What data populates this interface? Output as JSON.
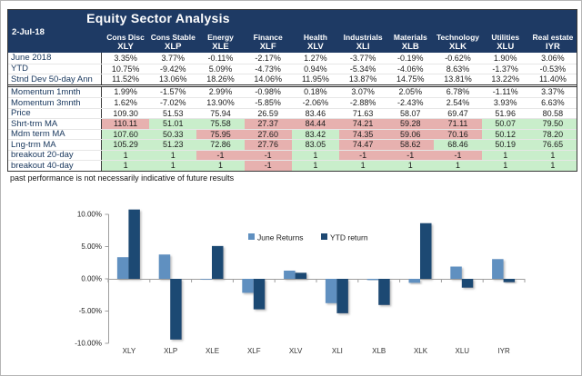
{
  "header": {
    "title": "Equity Sector Analysis",
    "date": "2-Jul-18"
  },
  "table": {
    "columns": [
      {
        "sector": "Cons Disc",
        "ticker": "XLY"
      },
      {
        "sector": "Cons Stable",
        "ticker": "XLP"
      },
      {
        "sector": "Energy",
        "ticker": "XLE"
      },
      {
        "sector": "Finance",
        "ticker": "XLF"
      },
      {
        "sector": "Health",
        "ticker": "XLV"
      },
      {
        "sector": "Industrials",
        "ticker": "XLI"
      },
      {
        "sector": "Materials",
        "ticker": "XLB"
      },
      {
        "sector": "Technology",
        "ticker": "XLK"
      },
      {
        "sector": "Utilities",
        "ticker": "XLU"
      },
      {
        "sector": "Real estate",
        "ticker": "IYR"
      }
    ],
    "section_break_after": 3,
    "rows": [
      {
        "label": "June 2018",
        "values": [
          "3.35%",
          "3.77%",
          "-0.11%",
          "-2.17%",
          "1.27%",
          "-3.77%",
          "-0.19%",
          "-0.62%",
          "1.90%",
          "3.06%"
        ],
        "colors": null
      },
      {
        "label": "YTD",
        "values": [
          "10.75%",
          "-9.42%",
          "5.09%",
          "-4.73%",
          "0.94%",
          "-5.34%",
          "-4.06%",
          "8.63%",
          "-1.37%",
          "-0.53%"
        ],
        "colors": null
      },
      {
        "label": "Stnd Dev 50-day Ann",
        "values": [
          "11.52%",
          "13.06%",
          "18.26%",
          "14.06%",
          "11.95%",
          "13.87%",
          "14.75%",
          "13.81%",
          "13.22%",
          "11.40%"
        ],
        "colors": null
      },
      {
        "label": "Momentum 1mnth",
        "values": [
          "1.99%",
          "-1.57%",
          "2.99%",
          "-0.98%",
          "0.18%",
          "3.07%",
          "2.05%",
          "6.78%",
          "-1.11%",
          "3.37%"
        ],
        "colors": null
      },
      {
        "label": "Momentum 3mnth",
        "values": [
          "1.62%",
          "-7.02%",
          "13.90%",
          "-5.85%",
          "-2.06%",
          "-2.88%",
          "-2.43%",
          "2.54%",
          "3.93%",
          "6.63%"
        ],
        "colors": null
      },
      {
        "label": "Price",
        "values": [
          "109.30",
          "51.53",
          "75.94",
          "26.59",
          "83.46",
          "71.63",
          "58.07",
          "69.47",
          "51.96",
          "80.58"
        ],
        "colors": null
      },
      {
        "label": "Shrt-trm MA",
        "values": [
          "110.11",
          "51.01",
          "75.58",
          "27.37",
          "84.44",
          "74.21",
          "59.28",
          "71.11",
          "50.07",
          "79.50"
        ],
        "colors": [
          "r",
          "g",
          "g",
          "r",
          "r",
          "r",
          "r",
          "r",
          "g",
          "g"
        ]
      },
      {
        "label": "Mdm term MA",
        "values": [
          "107.60",
          "50.33",
          "75.95",
          "27.60",
          "83.42",
          "74.35",
          "59.06",
          "70.16",
          "50.12",
          "78.20"
        ],
        "colors": [
          "g",
          "g",
          "r",
          "r",
          "g",
          "r",
          "r",
          "r",
          "g",
          "g"
        ]
      },
      {
        "label": "Lng-trm MA",
        "values": [
          "105.29",
          "51.23",
          "72.86",
          "27.76",
          "83.05",
          "74.47",
          "58.62",
          "68.46",
          "50.19",
          "76.65"
        ],
        "colors": [
          "g",
          "g",
          "g",
          "r",
          "g",
          "r",
          "r",
          "g",
          "g",
          "g"
        ]
      },
      {
        "label": "breakout 20-day",
        "values": [
          "1",
          "1",
          "-1",
          "-1",
          "1",
          "-1",
          "-1",
          "-1",
          "1",
          "1"
        ],
        "colors": [
          "g",
          "g",
          "r",
          "r",
          "g",
          "r",
          "r",
          "r",
          "g",
          "g"
        ]
      },
      {
        "label": "breakout 40-day",
        "values": [
          "1",
          "1",
          "1",
          "-1",
          "1",
          "1",
          "1",
          "1",
          "1",
          "1"
        ],
        "colors": [
          "g",
          "g",
          "g",
          "r",
          "g",
          "g",
          "g",
          "g",
          "g",
          "g"
        ]
      }
    ],
    "disclaimer": "past performance is not necessarily indicative of future results"
  },
  "chart_data": {
    "type": "bar",
    "categories": [
      "XLY",
      "XLP",
      "XLE",
      "XLF",
      "XLV",
      "XLI",
      "XLB",
      "XLK",
      "XLU",
      "IYR"
    ],
    "series": [
      {
        "name": "June Returns",
        "color": "#6090c0",
        "values": [
          3.35,
          3.77,
          -0.11,
          -2.17,
          1.27,
          -3.77,
          -0.19,
          -0.62,
          1.9,
          3.06
        ]
      },
      {
        "name": "YTD return",
        "color": "#1f4973",
        "values": [
          10.75,
          -9.42,
          5.09,
          -4.73,
          0.94,
          -5.34,
          -4.06,
          8.63,
          -1.37,
          -0.53
        ]
      }
    ],
    "ylim": [
      -10,
      10
    ],
    "yticks": [
      {
        "value": 10,
        "label": "10.00%"
      },
      {
        "value": 5,
        "label": "5.00%"
      },
      {
        "value": 0,
        "label": "0.00%"
      },
      {
        "value": -5,
        "label": "-5.00%"
      },
      {
        "value": -10,
        "label": "-10.00%"
      }
    ],
    "grid": false,
    "legend_position": "top-center"
  },
  "colors": {
    "header_bg": "#1e3a64",
    "positive_cell": "#c9eecb",
    "negative_cell": "#e7b1af",
    "axis": "#9e9e9e"
  }
}
